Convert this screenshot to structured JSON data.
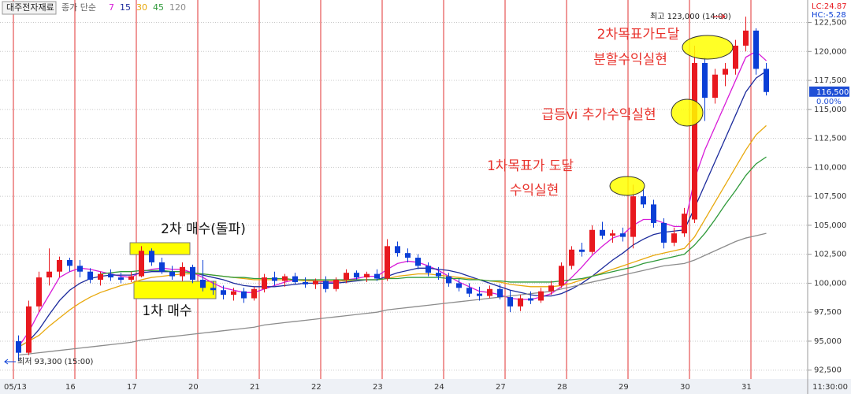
{
  "chart_data": {
    "type": "candlestick",
    "stock_name": "대주전자재료",
    "legend_title": "종가 단순",
    "up_color": "#e8191f",
    "down_color": "#0b3fd6",
    "grid": true,
    "ylim": [
      91800,
      124100
    ],
    "yticks": [
      {
        "value": 92500,
        "label": "92,500"
      },
      {
        "value": 95000,
        "label": "95,000"
      },
      {
        "value": 97500,
        "label": "97,500"
      },
      {
        "value": 100000,
        "label": "100,000"
      },
      {
        "value": 102500,
        "label": "102,500"
      },
      {
        "value": 105000,
        "label": "105,000"
      },
      {
        "value": 107500,
        "label": "107,500"
      },
      {
        "value": 110000,
        "label": "110,000"
      },
      {
        "value": 112500,
        "label": "112,500"
      },
      {
        "value": 115000,
        "label": "115,000"
      },
      {
        "value": 117500,
        "label": "117,500"
      },
      {
        "value": 120000,
        "label": "120,000"
      },
      {
        "value": 122500,
        "label": "122,500"
      }
    ],
    "categories": [
      "05/13",
      null,
      null,
      null,
      null,
      null,
      "16",
      null,
      null,
      null,
      null,
      null,
      "17",
      null,
      null,
      null,
      null,
      null,
      "20",
      null,
      null,
      null,
      null,
      null,
      "21",
      null,
      null,
      null,
      null,
      null,
      "22",
      null,
      null,
      null,
      null,
      null,
      "23",
      null,
      null,
      null,
      null,
      null,
      "24",
      null,
      null,
      null,
      null,
      null,
      "27",
      null,
      null,
      null,
      null,
      null,
      "28",
      null,
      null,
      null,
      null,
      null,
      "29",
      null,
      null,
      null,
      null,
      null,
      "30",
      null,
      null,
      null,
      null,
      null,
      "31",
      null
    ],
    "time_label": "11:30:00",
    "open": [
      95000,
      94000,
      98000,
      100500,
      101000,
      102000,
      101500,
      101000,
      100300,
      100800,
      100500,
      100300,
      100600,
      102800,
      101800,
      101000,
      100600,
      101400,
      100300,
      99600,
      99400,
      99000,
      99300,
      98700,
      99500,
      100500,
      100200,
      100600,
      100100,
      99900,
      100200,
      99500,
      100300,
      100900,
      100500,
      100800,
      100400,
      103200,
      102600,
      102200,
      101500,
      100900,
      100600,
      100000,
      99600,
      99100,
      98900,
      99500,
      98800,
      98000,
      98700,
      98500,
      99300,
      99800,
      101500,
      102900,
      102700,
      104600,
      104100,
      104300,
      104000,
      107500,
      106800,
      105200,
      103500,
      104300,
      105500,
      119000,
      116000,
      118000,
      118500,
      120500,
      121800,
      118500
    ],
    "high": [
      95500,
      98500,
      101000,
      103000,
      102300,
      102200,
      102000,
      101300,
      101000,
      101200,
      100900,
      101000,
      103200,
      103000,
      102200,
      101500,
      101800,
      101600,
      102000,
      100200,
      99800,
      99600,
      99600,
      99700,
      100800,
      101000,
      100800,
      100900,
      100500,
      100400,
      100600,
      100500,
      101200,
      101100,
      101000,
      101200,
      103800,
      103600,
      103000,
      102500,
      101800,
      101400,
      100900,
      100400,
      100000,
      99700,
      99800,
      99900,
      99400,
      99000,
      99300,
      99600,
      100200,
      101800,
      103200,
      103500,
      105000,
      105300,
      104600,
      104800,
      108500,
      108300,
      107200,
      105600,
      104800,
      106500,
      120500,
      119500,
      118500,
      119000,
      121000,
      123000,
      122000,
      119000
    ],
    "low": [
      93300,
      93800,
      97500,
      99800,
      100500,
      101000,
      100500,
      100000,
      99800,
      100200,
      100000,
      100100,
      100500,
      101500,
      100800,
      100300,
      100200,
      100000,
      99300,
      99000,
      98600,
      98500,
      98300,
      98500,
      99200,
      99800,
      99700,
      99900,
      99600,
      99500,
      99200,
      99300,
      100000,
      100300,
      100100,
      100200,
      100200,
      102300,
      101800,
      101200,
      100600,
      100300,
      99700,
      99300,
      98800,
      98500,
      98700,
      98600,
      97500,
      97600,
      98200,
      98300,
      99000,
      99600,
      101200,
      102300,
      102500,
      103800,
      103500,
      103600,
      103000,
      106500,
      104800,
      103000,
      103200,
      104000,
      105200,
      114000,
      115500,
      117000,
      118000,
      120000,
      118000,
      116200
    ],
    "close": [
      94000,
      98000,
      100500,
      101000,
      102000,
      101500,
      101000,
      100300,
      100800,
      100500,
      100300,
      100600,
      102800,
      101800,
      101000,
      100600,
      101400,
      100300,
      99600,
      99400,
      99000,
      99300,
      98700,
      99500,
      100500,
      100200,
      100600,
      100100,
      99900,
      100200,
      99500,
      100300,
      100900,
      100500,
      100800,
      100400,
      103200,
      102600,
      102200,
      101500,
      100900,
      100600,
      100000,
      99600,
      99100,
      98900,
      99500,
      98800,
      98000,
      98700,
      98500,
      99300,
      99800,
      101500,
      102900,
      102700,
      104600,
      104100,
      104300,
      104000,
      107500,
      106800,
      105200,
      103500,
      104300,
      106000,
      119000,
      116000,
      118000,
      118500,
      120500,
      121800,
      118500,
      116500
    ],
    "series": [
      {
        "name": "7",
        "color": "#d81bd8",
        "values": [
          94500,
          95800,
          97500,
          99000,
          100500,
          101000,
          101300,
          101200,
          101000,
          100800,
          100600,
          100500,
          101000,
          101200,
          101300,
          101200,
          101200,
          100900,
          100500,
          100000,
          99600,
          99400,
          99200,
          99200,
          99500,
          99800,
          100100,
          100300,
          100300,
          100200,
          100100,
          100100,
          100300,
          100400,
          100600,
          100600,
          101200,
          101700,
          101900,
          101800,
          101500,
          101100,
          100600,
          100100,
          99700,
          99300,
          99200,
          99000,
          98700,
          98600,
          98600,
          98800,
          99100,
          99700,
          100500,
          101400,
          102400,
          103200,
          103900,
          104200,
          105000,
          105500,
          105500,
          105200,
          104900,
          104900,
          109000,
          111500,
          113500,
          115500,
          117500,
          119500,
          120000,
          119200
        ]
      },
      {
        "name": "15",
        "color": "#1c2b9c",
        "values": [
          94500,
          95000,
          96000,
          97300,
          98500,
          99400,
          100000,
          100400,
          100600,
          100700,
          100700,
          100700,
          100900,
          101000,
          101000,
          101000,
          101000,
          100900,
          100700,
          100500,
          100300,
          100000,
          99800,
          99700,
          99700,
          99700,
          99800,
          99900,
          100000,
          100000,
          100000,
          100000,
          100100,
          100200,
          100300,
          100300,
          100600,
          100900,
          101100,
          101300,
          101300,
          101200,
          101100,
          100900,
          100600,
          100300,
          100000,
          99700,
          99400,
          99200,
          99000,
          98900,
          98900,
          99100,
          99500,
          100000,
          100600,
          101300,
          102000,
          102600,
          103300,
          103800,
          104200,
          104400,
          104500,
          104600,
          106500,
          108500,
          110500,
          112500,
          114500,
          116500,
          117700,
          118300
        ]
      },
      {
        "name": "30",
        "color": "#e8a80c",
        "values": [
          94500,
          95000,
          95500,
          96300,
          97000,
          97700,
          98300,
          98800,
          99200,
          99500,
          99800,
          100000,
          100300,
          100500,
          100600,
          100700,
          100800,
          100800,
          100800,
          100700,
          100600,
          100500,
          100400,
          100300,
          100300,
          100300,
          100300,
          100300,
          100200,
          100200,
          100200,
          100200,
          100200,
          100300,
          100300,
          100300,
          100400,
          100600,
          100700,
          100800,
          100800,
          100700,
          100600,
          100500,
          100400,
          100300,
          100200,
          100100,
          99900,
          99800,
          99700,
          99700,
          99700,
          99800,
          100000,
          100300,
          100600,
          100900,
          101200,
          101500,
          101800,
          102100,
          102400,
          102600,
          102800,
          103000,
          104000,
          105500,
          107000,
          108500,
          110000,
          111500,
          112800,
          113600
        ]
      },
      {
        "name": "45",
        "color": "#2f9a3a",
        "values": [
          null,
          null,
          null,
          null,
          null,
          null,
          null,
          null,
          100800,
          100900,
          101000,
          101000,
          101100,
          101100,
          101100,
          101000,
          101000,
          100900,
          100800,
          100700,
          100600,
          100500,
          100500,
          100400,
          100400,
          100400,
          100400,
          100300,
          100300,
          100300,
          100300,
          100300,
          100300,
          100300,
          100300,
          100300,
          100400,
          100400,
          100500,
          100500,
          100500,
          100500,
          100400,
          100400,
          100300,
          100300,
          100200,
          100200,
          100100,
          100100,
          100100,
          100100,
          100100,
          100200,
          100300,
          100400,
          100600,
          100800,
          101000,
          101200,
          101400,
          101700,
          101900,
          102100,
          102300,
          102500,
          103300,
          104300,
          105500,
          106800,
          108000,
          109300,
          110300,
          110900
        ]
      },
      {
        "name": "120",
        "color": "#8c8c8c",
        "values": [
          93800,
          93900,
          94000,
          94100,
          94200,
          94300,
          94400,
          94500,
          94600,
          94700,
          94800,
          94900,
          95100,
          95200,
          95300,
          95400,
          95500,
          95600,
          95700,
          95800,
          95900,
          96000,
          96100,
          96200,
          96400,
          96500,
          96600,
          96700,
          96800,
          96900,
          97000,
          97100,
          97200,
          97300,
          97400,
          97500,
          97700,
          97800,
          97900,
          98000,
          98100,
          98200,
          98300,
          98400,
          98500,
          98600,
          98700,
          98800,
          98900,
          99000,
          99100,
          99200,
          99300,
          99500,
          99700,
          99900,
          100100,
          100300,
          100500,
          100700,
          100900,
          101100,
          101300,
          101500,
          101600,
          101700,
          102000,
          102400,
          102800,
          103200,
          103600,
          103900,
          104100,
          104300
        ]
      }
    ],
    "price_marker": {
      "value": 116500,
      "label": "116,500"
    },
    "change_label": "0.00%",
    "lc_label": "LC:24.87",
    "hc_label": "HC:-5.28",
    "high_note": "최고 123,000 (14:00)",
    "low_note": "최저 93,300 (15:00)",
    "annotations": [
      "2차목표가도달",
      "분할수익실현",
      "급등vi 추가수익실현",
      "1차목표가 도달",
      "수익실현",
      "2차 매수(돌파)",
      "1차 매수"
    ]
  }
}
